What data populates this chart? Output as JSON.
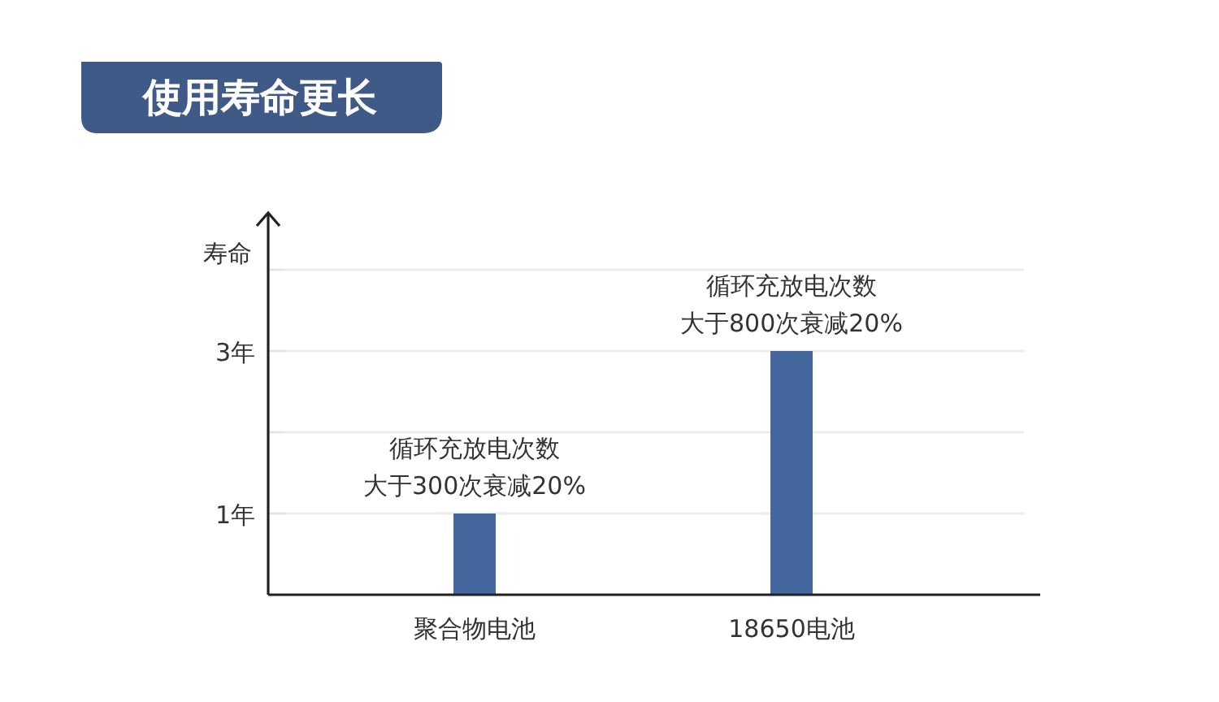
{
  "chart_data": {
    "type": "bar",
    "title": "使用寿命更长",
    "ylabel": "寿命",
    "categories": [
      "聚合物电池",
      "18650电池"
    ],
    "values": [
      1,
      3
    ],
    "color": "#44679d",
    "ylim": [
      0,
      4.7
    ],
    "yticks": [
      {
        "value": 1,
        "label": "1年"
      },
      {
        "value": 2,
        "label": null
      },
      {
        "value": 3,
        "label": "3年"
      },
      {
        "value": 4,
        "label": null
      }
    ],
    "grid": "y",
    "annotations": [
      {
        "text": "循环充放电次数大于300次衰减20%",
        "x": "聚合物电池",
        "y": 1
      },
      {
        "text": "循环充放电次数大于800次衰减20%",
        "x": "18650电池",
        "y": 3
      }
    ]
  }
}
